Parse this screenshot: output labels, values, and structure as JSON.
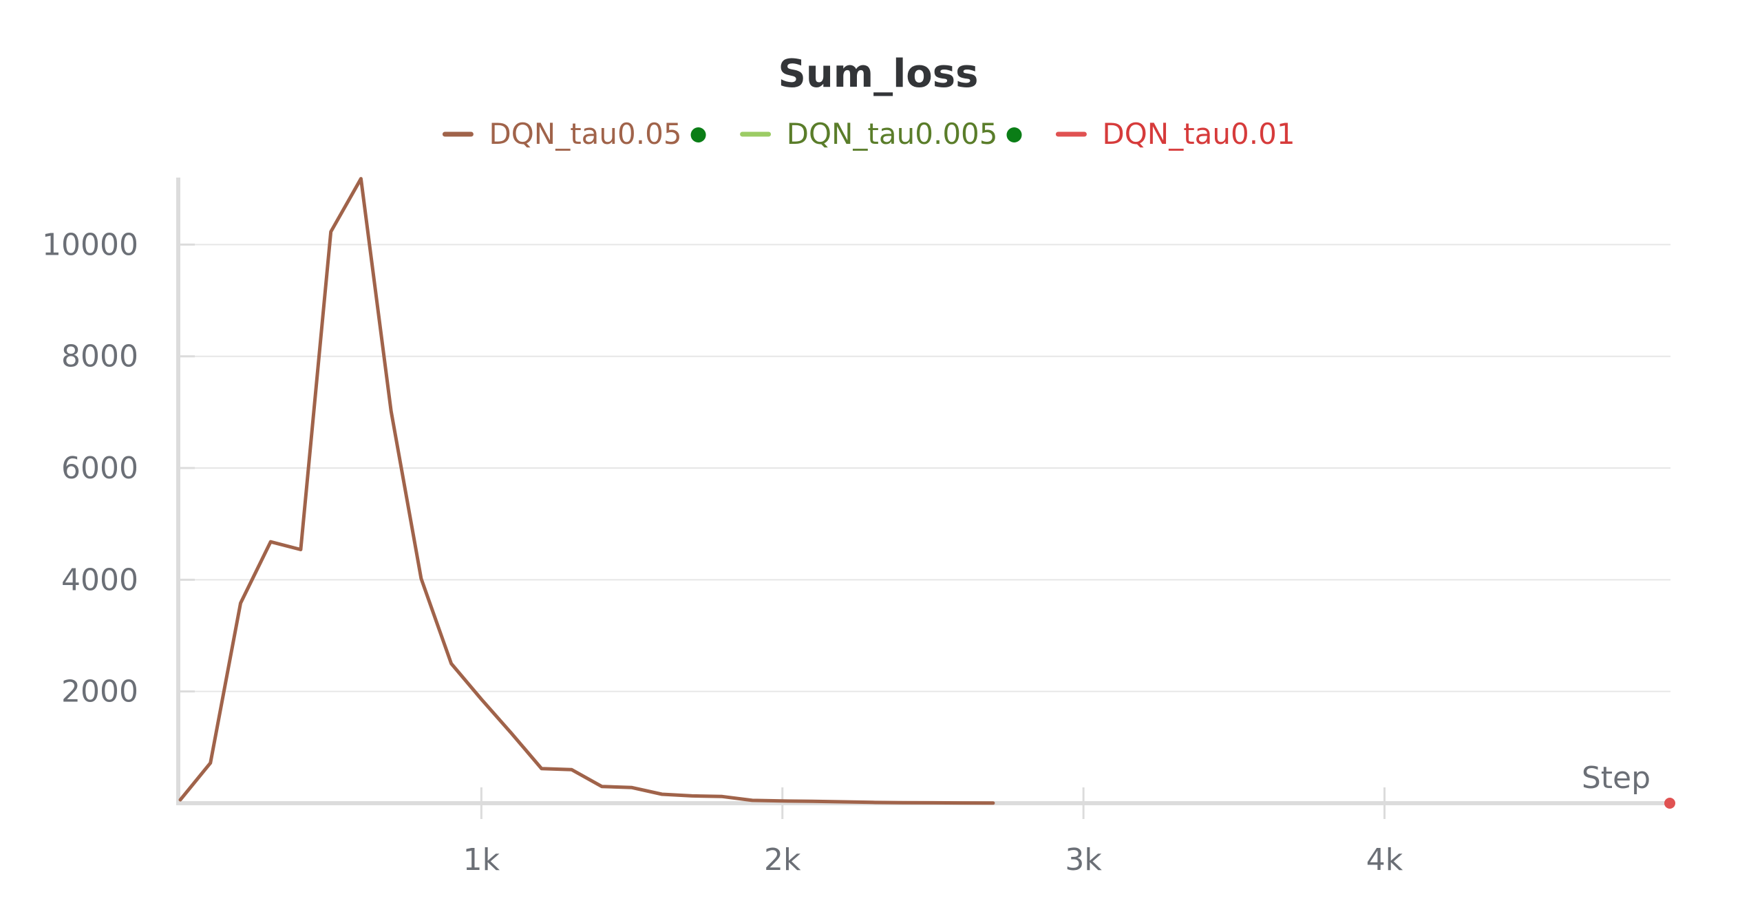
{
  "chart_data": {
    "type": "line",
    "title": "Sum_loss",
    "xlabel": "Step",
    "ylabel": "",
    "xlim": [
      0,
      4950
    ],
    "ylim": [
      0,
      11200
    ],
    "x_ticks": [
      1000,
      2000,
      3000,
      4000
    ],
    "x_tick_labels": [
      "1k",
      "2k",
      "3k",
      "4k"
    ],
    "y_ticks": [
      2000,
      4000,
      6000,
      8000,
      10000
    ],
    "y_tick_labels": [
      "2000",
      "4000",
      "6000",
      "8000",
      "10000"
    ],
    "grid": true,
    "legend_position": "top-center",
    "series": [
      {
        "name": "DQN_tau0.05",
        "color": "#a0634a",
        "text_color": "#a0634a",
        "status_dot": true,
        "status_dot_color": "#0a7d16",
        "x": [
          0,
          100,
          200,
          300,
          400,
          500,
          600,
          700,
          800,
          900,
          1000,
          1100,
          1200,
          1300,
          1400,
          1500,
          1600,
          1700,
          1800,
          1900,
          2000,
          2100,
          2200,
          2300,
          2400,
          2500,
          2600,
          2700
        ],
        "y": [
          60,
          720,
          3580,
          4680,
          4540,
          10230,
          11180,
          7020,
          4020,
          2500,
          1860,
          1250,
          620,
          600,
          300,
          280,
          160,
          130,
          120,
          50,
          40,
          35,
          25,
          15,
          10,
          8,
          5,
          3
        ]
      },
      {
        "name": "DQN_tau0.005",
        "color": "#9ccc65",
        "text_color": "#5a7d2a",
        "status_dot": true,
        "status_dot_color": "#0a7d16",
        "x": [],
        "y": []
      },
      {
        "name": "DQN_tau0.01",
        "color": "#e05252",
        "text_color": "#d63b3b",
        "status_dot": false,
        "x": [
          4950
        ],
        "y": [
          0
        ]
      }
    ]
  }
}
